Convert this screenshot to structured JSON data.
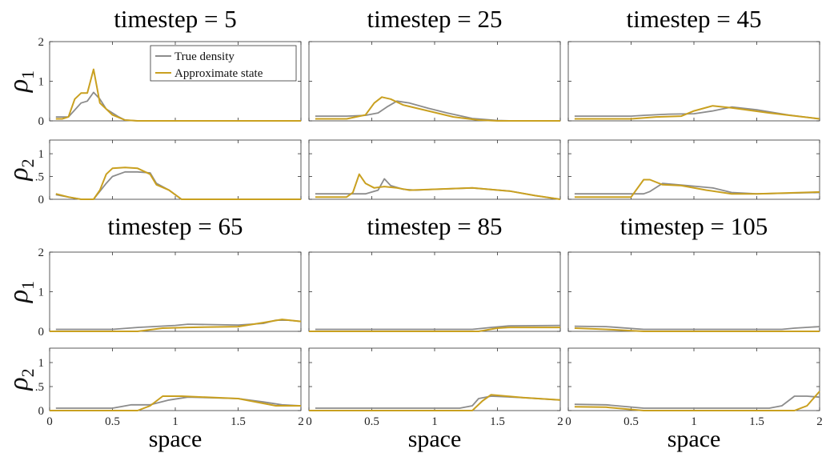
{
  "chart_data": {
    "type": "line",
    "xlabel": "space",
    "xlim": [
      0,
      2
    ],
    "x_ticks": [
      "0",
      "0.5",
      "1",
      "1.5",
      "2"
    ],
    "row_labels": {
      "rho1": "ρ1",
      "rho2": "ρ2"
    },
    "rho1_ylim": [
      0,
      2
    ],
    "rho1_ticks": [
      "0",
      "1",
      "2"
    ],
    "rho2_ylim": [
      0,
      1.3
    ],
    "rho2_ticks": [
      "0",
      ".5",
      "1"
    ],
    "legend": {
      "placement": "top-right of first panel",
      "entries": [
        {
          "name": "True density",
          "color": "#8c8c8c"
        },
        {
          "name": "Approximate state",
          "color": "#c9a020"
        }
      ]
    },
    "panels": [
      {
        "title": "timestep = 5",
        "rho1": {
          "true": [
            [
              0.05,
              0.1
            ],
            [
              0.15,
              0.1
            ],
            [
              0.25,
              0.45
            ],
            [
              0.3,
              0.5
            ],
            [
              0.35,
              0.72
            ],
            [
              0.4,
              0.55
            ],
            [
              0.45,
              0.3
            ],
            [
              0.55,
              0.1
            ],
            [
              0.6,
              0.02
            ],
            [
              0.7,
              0
            ],
            [
              2,
              0
            ]
          ],
          "approx": [
            [
              0.05,
              0.05
            ],
            [
              0.1,
              0.05
            ],
            [
              0.15,
              0.1
            ],
            [
              0.2,
              0.55
            ],
            [
              0.25,
              0.7
            ],
            [
              0.3,
              0.7
            ],
            [
              0.35,
              1.3
            ],
            [
              0.4,
              0.45
            ],
            [
              0.5,
              0.15
            ],
            [
              0.6,
              0.02
            ],
            [
              0.7,
              0
            ],
            [
              2,
              0
            ]
          ]
        },
        "rho2": {
          "true": [
            [
              0.05,
              0.1
            ],
            [
              0.15,
              0.05
            ],
            [
              0.25,
              0
            ],
            [
              0.35,
              0
            ],
            [
              0.45,
              0.35
            ],
            [
              0.5,
              0.5
            ],
            [
              0.6,
              0.6
            ],
            [
              0.7,
              0.6
            ],
            [
              0.8,
              0.58
            ],
            [
              0.85,
              0.35
            ],
            [
              0.95,
              0.2
            ],
            [
              1.05,
              0
            ],
            [
              2,
              0
            ]
          ],
          "approx": [
            [
              0.05,
              0.12
            ],
            [
              0.15,
              0.05
            ],
            [
              0.25,
              0
            ],
            [
              0.35,
              0
            ],
            [
              0.4,
              0.2
            ],
            [
              0.45,
              0.55
            ],
            [
              0.5,
              0.68
            ],
            [
              0.6,
              0.7
            ],
            [
              0.7,
              0.68
            ],
            [
              0.8,
              0.55
            ],
            [
              0.85,
              0.32
            ],
            [
              0.95,
              0.2
            ],
            [
              1.05,
              0
            ],
            [
              2,
              0
            ]
          ]
        }
      },
      {
        "title": "timestep = 25",
        "rho1": {
          "true": [
            [
              0.05,
              0.12
            ],
            [
              0.3,
              0.12
            ],
            [
              0.45,
              0.14
            ],
            [
              0.55,
              0.2
            ],
            [
              0.62,
              0.35
            ],
            [
              0.7,
              0.5
            ],
            [
              0.8,
              0.45
            ],
            [
              0.95,
              0.32
            ],
            [
              1.1,
              0.2
            ],
            [
              1.3,
              0.06
            ],
            [
              1.5,
              0.01
            ],
            [
              1.6,
              0
            ],
            [
              2,
              0
            ]
          ],
          "approx": [
            [
              0.05,
              0.05
            ],
            [
              0.3,
              0.05
            ],
            [
              0.45,
              0.15
            ],
            [
              0.52,
              0.45
            ],
            [
              0.58,
              0.6
            ],
            [
              0.65,
              0.55
            ],
            [
              0.75,
              0.4
            ],
            [
              0.95,
              0.25
            ],
            [
              1.15,
              0.1
            ],
            [
              1.35,
              0.02
            ],
            [
              1.5,
              0
            ],
            [
              2,
              0
            ]
          ]
        },
        "rho2": {
          "true": [
            [
              0.05,
              0.12
            ],
            [
              0.45,
              0.12
            ],
            [
              0.55,
              0.2
            ],
            [
              0.6,
              0.45
            ],
            [
              0.65,
              0.3
            ],
            [
              0.75,
              0.22
            ],
            [
              0.85,
              0.2
            ],
            [
              1.0,
              0.22
            ],
            [
              1.3,
              0.25
            ],
            [
              1.6,
              0.18
            ],
            [
              1.8,
              0.08
            ],
            [
              2,
              0
            ]
          ],
          "approx": [
            [
              0.05,
              0.05
            ],
            [
              0.3,
              0.05
            ],
            [
              0.35,
              0.15
            ],
            [
              0.4,
              0.55
            ],
            [
              0.45,
              0.35
            ],
            [
              0.52,
              0.25
            ],
            [
              0.6,
              0.28
            ],
            [
              0.7,
              0.25
            ],
            [
              0.8,
              0.2
            ],
            [
              1.0,
              0.22
            ],
            [
              1.3,
              0.25
            ],
            [
              1.6,
              0.18
            ],
            [
              1.8,
              0.08
            ],
            [
              2,
              0
            ]
          ]
        }
      },
      {
        "title": "timestep = 45",
        "rho1": {
          "true": [
            [
              0.05,
              0.12
            ],
            [
              0.5,
              0.12
            ],
            [
              0.6,
              0.14
            ],
            [
              0.8,
              0.17
            ],
            [
              1.0,
              0.18
            ],
            [
              1.15,
              0.25
            ],
            [
              1.3,
              0.35
            ],
            [
              1.5,
              0.28
            ],
            [
              1.75,
              0.15
            ],
            [
              2,
              0.05
            ]
          ],
          "approx": [
            [
              0.05,
              0.05
            ],
            [
              0.5,
              0.05
            ],
            [
              0.7,
              0.1
            ],
            [
              0.9,
              0.12
            ],
            [
              1.0,
              0.25
            ],
            [
              1.15,
              0.38
            ],
            [
              1.3,
              0.33
            ],
            [
              1.6,
              0.2
            ],
            [
              2,
              0.05
            ]
          ]
        },
        "rho2": {
          "true": [
            [
              0.05,
              0.12
            ],
            [
              0.6,
              0.12
            ],
            [
              0.65,
              0.17
            ],
            [
              0.75,
              0.35
            ],
            [
              0.95,
              0.3
            ],
            [
              1.15,
              0.25
            ],
            [
              1.3,
              0.15
            ],
            [
              1.5,
              0.12
            ],
            [
              2,
              0.15
            ]
          ],
          "approx": [
            [
              0.05,
              0.05
            ],
            [
              0.5,
              0.05
            ],
            [
              0.6,
              0.43
            ],
            [
              0.65,
              0.43
            ],
            [
              0.75,
              0.32
            ],
            [
              0.9,
              0.3
            ],
            [
              1.1,
              0.2
            ],
            [
              1.3,
              0.12
            ],
            [
              1.5,
              0.12
            ],
            [
              2,
              0.16
            ]
          ]
        }
      },
      {
        "title": "timestep = 65",
        "rho1": {
          "true": [
            [
              0.05,
              0.05
            ],
            [
              0.5,
              0.05
            ],
            [
              0.7,
              0.1
            ],
            [
              1.0,
              0.15
            ],
            [
              1.1,
              0.18
            ],
            [
              1.5,
              0.16
            ],
            [
              1.7,
              0.2
            ],
            [
              1.8,
              0.28
            ],
            [
              1.9,
              0.28
            ],
            [
              2,
              0.25
            ]
          ],
          "approx": [
            [
              0,
              0
            ],
            [
              0.7,
              0
            ],
            [
              0.9,
              0.08
            ],
            [
              1.1,
              0.1
            ],
            [
              1.5,
              0.12
            ],
            [
              1.7,
              0.22
            ],
            [
              1.85,
              0.3
            ],
            [
              2,
              0.25
            ]
          ]
        },
        "rho2": {
          "true": [
            [
              0.05,
              0.05
            ],
            [
              0.5,
              0.05
            ],
            [
              0.65,
              0.12
            ],
            [
              0.8,
              0.12
            ],
            [
              0.95,
              0.22
            ],
            [
              1.1,
              0.28
            ],
            [
              1.5,
              0.25
            ],
            [
              1.7,
              0.18
            ],
            [
              1.85,
              0.12
            ],
            [
              2,
              0.1
            ]
          ],
          "approx": [
            [
              0,
              0
            ],
            [
              0.7,
              0
            ],
            [
              0.8,
              0.1
            ],
            [
              0.9,
              0.3
            ],
            [
              1.05,
              0.3
            ],
            [
              1.5,
              0.25
            ],
            [
              1.7,
              0.15
            ],
            [
              1.8,
              0.1
            ],
            [
              2,
              0.1
            ]
          ]
        }
      },
      {
        "title": "timestep = 85",
        "rho1": {
          "true": [
            [
              0.05,
              0.05
            ],
            [
              1.3,
              0.05
            ],
            [
              1.45,
              0.1
            ],
            [
              1.6,
              0.14
            ],
            [
              2,
              0.15
            ]
          ],
          "approx": [
            [
              0,
              0
            ],
            [
              1.35,
              0
            ],
            [
              1.5,
              0.08
            ],
            [
              1.6,
              0.1
            ],
            [
              2,
              0.1
            ]
          ]
        },
        "rho2": {
          "true": [
            [
              0.05,
              0.05
            ],
            [
              1.2,
              0.05
            ],
            [
              1.3,
              0.1
            ],
            [
              1.35,
              0.25
            ],
            [
              1.45,
              0.3
            ],
            [
              1.7,
              0.27
            ],
            [
              2,
              0.22
            ]
          ],
          "approx": [
            [
              0,
              0
            ],
            [
              1.3,
              0
            ],
            [
              1.38,
              0.2
            ],
            [
              1.45,
              0.33
            ],
            [
              1.7,
              0.27
            ],
            [
              2,
              0.22
            ]
          ]
        }
      },
      {
        "title": "timestep = 105",
        "rho1": {
          "true": [
            [
              0.05,
              0.13
            ],
            [
              0.3,
              0.12
            ],
            [
              0.6,
              0.05
            ],
            [
              1.5,
              0.05
            ],
            [
              1.7,
              0.05
            ],
            [
              1.8,
              0.08
            ],
            [
              2,
              0.12
            ]
          ],
          "approx": [
            [
              0.05,
              0.08
            ],
            [
              0.3,
              0.05
            ],
            [
              0.6,
              0
            ],
            [
              2,
              0
            ]
          ]
        },
        "rho2": {
          "true": [
            [
              0.05,
              0.13
            ],
            [
              0.3,
              0.12
            ],
            [
              0.6,
              0.05
            ],
            [
              1.6,
              0.05
            ],
            [
              1.7,
              0.1
            ],
            [
              1.8,
              0.3
            ],
            [
              1.9,
              0.3
            ],
            [
              2,
              0.28
            ]
          ],
          "approx": [
            [
              0.05,
              0.08
            ],
            [
              0.3,
              0.07
            ],
            [
              0.6,
              0
            ],
            [
              1.8,
              0
            ],
            [
              1.9,
              0.1
            ],
            [
              2,
              0.4
            ]
          ]
        }
      }
    ]
  }
}
